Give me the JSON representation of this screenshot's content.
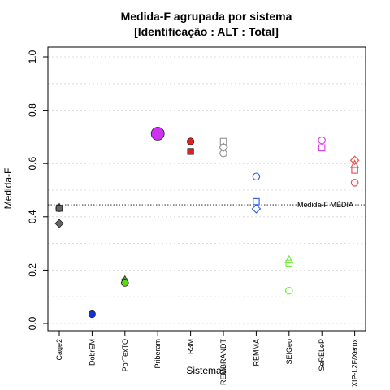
{
  "chart_data": {
    "type": "scatter",
    "title": "Medida-F agrupada por sistema",
    "subtitle": "[Identificação : ALT : Total]",
    "xlabel": "Sistemas",
    "ylabel": "Medida-F",
    "ylim": [
      0.0,
      1.0
    ],
    "yticks": [
      "0.0",
      "0.2",
      "0.4",
      "0.6",
      "0.8",
      "1.0"
    ],
    "ytick_values": [
      0.0,
      0.2,
      0.4,
      0.6,
      0.8,
      1.0
    ],
    "grid": true,
    "categories": [
      "Cage2",
      "DobrEM",
      "PorTexTO",
      "Priberam",
      "R3M",
      "REMBRANDT",
      "REMMA",
      "SEIGeo",
      "SeRELeP",
      "XIP-L2F/Xerox"
    ],
    "reference_line": {
      "value": 0.445,
      "label": "Medida-F MÉDIA"
    },
    "points": [
      {
        "system": "Cage2",
        "shape": "triangle",
        "filled": true,
        "color": "#666666",
        "y": 0.435
      },
      {
        "system": "Cage2",
        "shape": "circle",
        "filled": true,
        "color": "#666666",
        "y": 0.432
      },
      {
        "system": "Cage2",
        "shape": "square",
        "filled": true,
        "color": "#666666",
        "y": 0.432
      },
      {
        "system": "Cage2",
        "shape": "diamond",
        "filled": true,
        "color": "#666666",
        "y": 0.375
      },
      {
        "system": "DobrEM",
        "shape": "circle",
        "filled": true,
        "color": "#1133dd",
        "y": 0.035
      },
      {
        "system": "PorTexTO",
        "shape": "triangle",
        "filled": true,
        "color": "#55dd11",
        "y": 0.163
      },
      {
        "system": "PorTexTO",
        "shape": "square",
        "filled": true,
        "color": "#55dd11",
        "y": 0.156
      },
      {
        "system": "PorTexTO",
        "shape": "circle",
        "filled": true,
        "color": "#55dd11",
        "y": 0.152
      },
      {
        "system": "Priberam",
        "shape": "circle",
        "filled": true,
        "color": "#cc33ee",
        "y": 0.712,
        "big": true
      },
      {
        "system": "R3M",
        "shape": "circle",
        "filled": true,
        "color": "#dd2222",
        "y": 0.683
      },
      {
        "system": "R3M",
        "shape": "square",
        "filled": true,
        "color": "#dd2222",
        "y": 0.645
      },
      {
        "system": "REMBRANDT",
        "shape": "square",
        "filled": false,
        "color": "#999999",
        "y": 0.683
      },
      {
        "system": "REMBRANDT",
        "shape": "diamond",
        "filled": false,
        "color": "#999999",
        "y": 0.661
      },
      {
        "system": "REMBRANDT",
        "shape": "circle",
        "filled": false,
        "color": "#999999",
        "y": 0.638
      },
      {
        "system": "REMMA",
        "shape": "circle",
        "filled": false,
        "color": "#3366ee",
        "y": 0.551
      },
      {
        "system": "REMMA",
        "shape": "square",
        "filled": false,
        "color": "#3366ee",
        "y": 0.457
      },
      {
        "system": "REMMA",
        "shape": "diamond",
        "filled": false,
        "color": "#3366ee",
        "y": 0.43
      },
      {
        "system": "SEIGeo",
        "shape": "triangle",
        "filled": false,
        "color": "#77ee44",
        "y": 0.238
      },
      {
        "system": "SEIGeo",
        "shape": "square",
        "filled": false,
        "color": "#77ee44",
        "y": 0.226
      },
      {
        "system": "SEIGeo",
        "shape": "circle",
        "filled": false,
        "color": "#77ee44",
        "y": 0.123
      },
      {
        "system": "SeRELeP",
        "shape": "circle",
        "filled": false,
        "color": "#dd44ee",
        "y": 0.687
      },
      {
        "system": "SeRELeP",
        "shape": "square",
        "filled": false,
        "color": "#dd44ee",
        "y": 0.659
      },
      {
        "system": "XIP-L2F/Xerox",
        "shape": "diamond",
        "filled": false,
        "color": "#ee5555",
        "y": 0.612
      },
      {
        "system": "XIP-L2F/Xerox",
        "shape": "triangle",
        "filled": false,
        "color": "#ee5555",
        "y": 0.596
      },
      {
        "system": "XIP-L2F/Xerox",
        "shape": "square",
        "filled": false,
        "color": "#ee5555",
        "y": 0.575
      },
      {
        "system": "XIP-L2F/Xerox",
        "shape": "circle",
        "filled": false,
        "color": "#ee5555",
        "y": 0.528
      }
    ]
  }
}
